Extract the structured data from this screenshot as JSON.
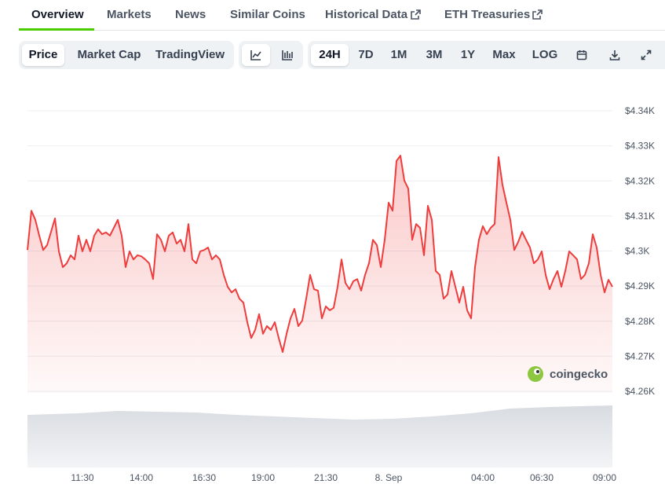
{
  "tabs": [
    "Overview",
    "Markets",
    "News",
    "Similar Coins",
    "Historical Data",
    "ETH Treasuries"
  ],
  "chart_types": [
    "Price",
    "Market Cap",
    "TradingView"
  ],
  "ranges": [
    "24H",
    "7D",
    "1M",
    "3M",
    "1Y",
    "Max",
    "LOG"
  ],
  "watermark": "coingecko",
  "chart_data": {
    "type": "area",
    "color": "#ef3c3c",
    "categories": [
      null,
      null,
      null,
      null,
      null,
      null,
      null,
      null,
      null,
      null,
      null,
      null,
      null,
      null,
      "11:30",
      null,
      null,
      null,
      null,
      null,
      null,
      null,
      null,
      null,
      null,
      null,
      null,
      null,
      null,
      "14:00",
      null,
      null,
      null,
      null,
      null,
      null,
      null,
      null,
      null,
      null,
      null,
      null,
      null,
      null,
      null,
      "16:30",
      null,
      null,
      null,
      null,
      null,
      null,
      null,
      null,
      null,
      null,
      null,
      null,
      null,
      null,
      "19:00",
      null,
      null,
      null,
      null,
      null,
      null,
      null,
      null,
      null,
      null,
      null,
      null,
      null,
      null,
      null,
      "21:30",
      null,
      null,
      null,
      null,
      null,
      null,
      null,
      null,
      null,
      null,
      null,
      null,
      null,
      null,
      null,
      "8. Sep",
      null,
      null,
      null,
      null,
      null,
      null,
      null,
      null,
      null,
      null,
      null,
      null,
      null,
      null,
      null,
      null,
      null,
      null,
      null,
      null,
      null,
      null,
      null,
      "04:00",
      null,
      null,
      null,
      null,
      null,
      null,
      null,
      null,
      null,
      null,
      null,
      null,
      null,
      null,
      "06:30",
      null,
      null,
      null,
      null,
      null,
      null,
      null,
      null,
      null,
      null,
      null,
      null,
      null,
      null,
      null,
      "09:00",
      null,
      null
    ],
    "values": [
      4300.3,
      4311.5,
      4308.9,
      4304.4,
      4300.3,
      4301.7,
      4305.5,
      4309.3,
      4299.9,
      4295.4,
      4296.5,
      4298.8,
      4297.6,
      4304.4,
      4299.9,
      4303.2,
      4299.9,
      4304.4,
      4306.2,
      4304.8,
      4305.3,
      4304.4,
      4306.6,
      4308.9,
      4304.4,
      4295.4,
      4299.9,
      4297.6,
      4298.8,
      4298.5,
      4297.6,
      4296.5,
      4292.0,
      4304.8,
      4303.2,
      4299.9,
      4304.4,
      4305.3,
      4302.1,
      4303.2,
      4299.9,
      4307.7,
      4297.6,
      4296.5,
      4299.9,
      4300.3,
      4301.0,
      4297.6,
      4298.8,
      4297.6,
      4293.2,
      4289.8,
      4288.2,
      4289.1,
      4286.4,
      4285.3,
      4279.7,
      4275.2,
      4277.5,
      4282.0,
      4276.4,
      4278.6,
      4277.5,
      4279.7,
      4275.2,
      4271.2,
      4276.4,
      4280.8,
      4283.5,
      4278.6,
      4280.2,
      4286.4,
      4293.2,
      4289.1,
      4288.7,
      4280.8,
      4284.2,
      4283.1,
      4283.8,
      4289.8,
      4297.6,
      4290.9,
      4289.1,
      4291.4,
      4292.0,
      4288.7,
      4293.2,
      4296.5,
      4303.2,
      4301.7,
      4295.4,
      4303.2,
      4313.8,
      4311.5,
      4325.7,
      4327.2,
      4320.1,
      4317.8,
      4303.2,
      4307.7,
      4306.6,
      4298.8,
      4312.9,
      4308.9,
      4294.3,
      4293.2,
      4286.4,
      4287.6,
      4294.3,
      4289.8,
      4285.3,
      4289.8,
      4283.1,
      4280.8,
      4295.4,
      4303.2,
      4307.1,
      4304.8,
      4306.6,
      4307.7,
      4326.8,
      4318.9,
      4313.8,
      4308.9,
      4300.3,
      4302.6,
      4305.5,
      4303.2,
      4301.0,
      4296.5,
      4297.6,
      4299.9,
      4293.2,
      4289.1,
      4292.0,
      4294.3,
      4289.8,
      4294.3,
      4299.9,
      4298.8,
      4297.6,
      4292.0,
      4293.2,
      4296.5,
      4304.8,
      4301.0,
      4293.2,
      4288.2,
      4291.8,
      4289.8
    ],
    "ylim": [
      4260,
      4340
    ],
    "yticks": [
      {
        "value": 4260,
        "label": "$4.26K"
      },
      {
        "value": 4270,
        "label": "$4.27K"
      },
      {
        "value": 4280,
        "label": "$4.28K"
      },
      {
        "value": 4290,
        "label": "$4.29K"
      },
      {
        "value": 4300,
        "label": "$4.3K"
      },
      {
        "value": 4310,
        "label": "$4.31K"
      },
      {
        "value": 4320,
        "label": "$4.32K"
      },
      {
        "value": 4330,
        "label": "$4.33K"
      },
      {
        "value": 4340,
        "label": "$4.34K"
      }
    ],
    "grid": true
  }
}
